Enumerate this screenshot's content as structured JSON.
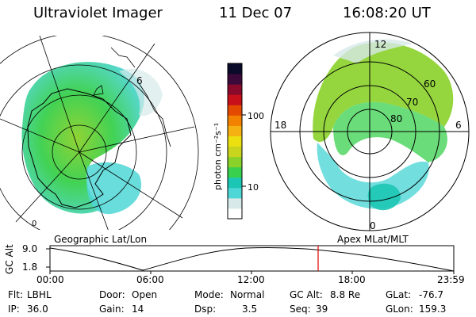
{
  "header": {
    "title": "Ultraviolet Imager",
    "date": "11 Dec 07",
    "time": "16:08:20 UT"
  },
  "left_map": {
    "caption": "Geographic Lat/Lon",
    "lon_labels": [
      "0",
      "6"
    ]
  },
  "right_map": {
    "caption": "Apex MLat/MLT",
    "mlt_labels": {
      "top": "12",
      "left": "18",
      "right": "6",
      "bottom": "0"
    },
    "mlat_labels": [
      "60",
      "70",
      "80"
    ]
  },
  "colorbar": {
    "unit_label": "photon cm⁻²s⁻¹",
    "ticks": [
      "100",
      "10"
    ],
    "colors": [
      "#ffffff",
      "#d7e9e9",
      "#4fd6d6",
      "#1cc6b4",
      "#38d04c",
      "#8ad12a",
      "#c8d51c",
      "#ece010",
      "#f5b012",
      "#f28200",
      "#e44a00",
      "#c8101a",
      "#8a0a2c",
      "#3c0a3a",
      "#0a0a2a"
    ]
  },
  "altitude_plot": {
    "ylabel": "GC Alt",
    "yticks": [
      "9.0",
      "1.8"
    ],
    "xticks": [
      "00:00",
      "06:00",
      "12:00",
      "18:00",
      "23:59"
    ],
    "marker_time": "16:08:20"
  },
  "status": {
    "flt_label": "Flt:",
    "flt_value": "LBHL",
    "ip_label": "IP:",
    "ip_value": "36.0",
    "door_label": "Door:",
    "door_value": "Open",
    "gain_label": "Gain:",
    "gain_value": "14",
    "mode_label": "Mode:",
    "mode_value": "Normal",
    "dsp_label": "Dsp:",
    "dsp_value": "3.5",
    "gcalt_label": "GC Alt:",
    "gcalt_value": "8.8 Re",
    "seq_label": "Seq:",
    "seq_value": "39",
    "glat_label": "GLat:",
    "glat_value": "-76.7",
    "glon_label": "GLon:",
    "glon_value": "159.3"
  }
}
